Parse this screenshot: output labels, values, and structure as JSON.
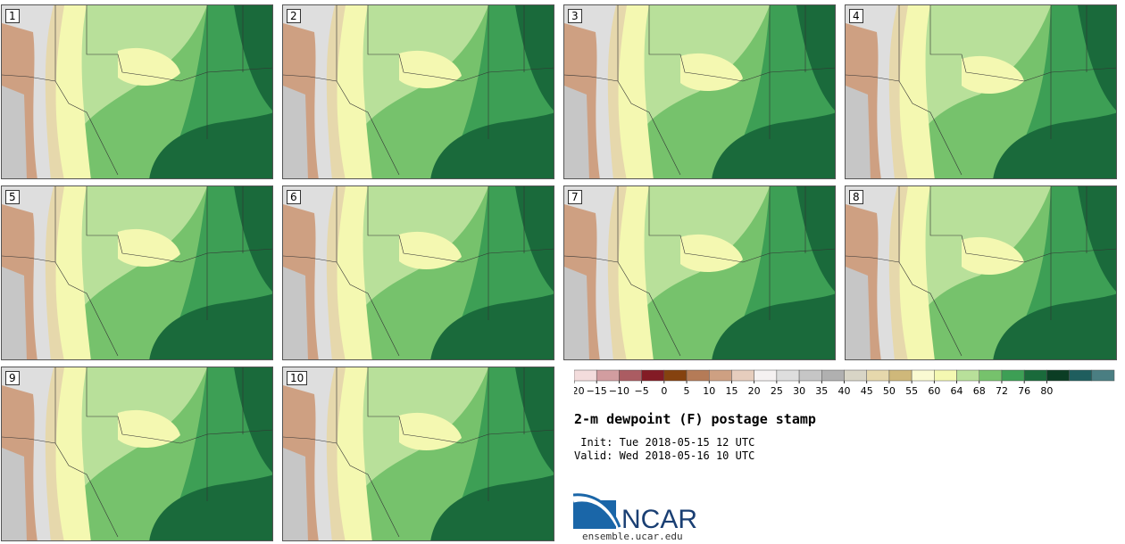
{
  "panels": [
    {
      "label": "1"
    },
    {
      "label": "2"
    },
    {
      "label": "3"
    },
    {
      "label": "4"
    },
    {
      "label": "5"
    },
    {
      "label": "6"
    },
    {
      "label": "7"
    },
    {
      "label": "8"
    },
    {
      "label": "9"
    },
    {
      "label": "10"
    }
  ],
  "colorbar": {
    "ticks": [
      "−20",
      "−15",
      "−10",
      "−5",
      "0",
      "5",
      "10",
      "15",
      "20",
      "25",
      "30",
      "35",
      "40",
      "45",
      "50",
      "55",
      "60",
      "64",
      "68",
      "72",
      "76",
      "80"
    ],
    "colors": [
      "#f3dcdc",
      "#d29da0",
      "#ab5c62",
      "#831b25",
      "#85420f",
      "#b57b57",
      "#cea082",
      "#e6cdbd",
      "#f5f1f1",
      "#dedede",
      "#c6c6c6",
      "#b0b0b0",
      "#d8d5c6",
      "#e6d8ac",
      "#cfb87a",
      "#fafad2",
      "#f4f8b1",
      "#b8e09a",
      "#76c26c",
      "#3d9f55",
      "#1a6a3b",
      "#0b3d24",
      "#1f5e5e",
      "#4a7e82"
    ]
  },
  "title": "2-m dewpoint (F) postage stamp",
  "init": " Init: Tue 2018-05-15 12 UTC",
  "valid": "Valid: Wed 2018-05-16 10 UTC",
  "logo": {
    "text": "NCAR",
    "url": "ensemble.ucar.edu"
  }
}
